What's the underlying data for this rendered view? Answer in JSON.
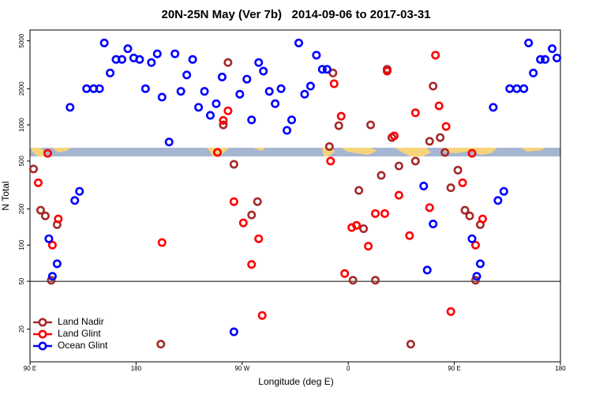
{
  "chart_data": {
    "type": "scatter",
    "title": "20N-25N May (Ver 7b)   2014-09-06 to 2017-03-31",
    "xlabel": "Longitude (deg E)",
    "ylabel": "N Total",
    "xlim": [
      90,
      540
    ],
    "xticks": [
      {
        "value": 90,
        "label": "90 E"
      },
      {
        "value": 180,
        "label": "180"
      },
      {
        "value": 270,
        "label": "90 W"
      },
      {
        "value": 360,
        "label": "0"
      },
      {
        "value": 450,
        "label": "90 E"
      },
      {
        "value": 540,
        "label": "180"
      }
    ],
    "ylim": [
      10.7,
      6150
    ],
    "yscale": "log",
    "yticks": [
      20,
      50,
      100,
      200,
      500,
      1000,
      2000,
      5000
    ],
    "reference_line": 50,
    "legend": "lower left",
    "series": [
      {
        "name": "Land Nadir",
        "color": "#a52a2a",
        "x": [
          93,
          99,
          103,
          113,
          108,
          201,
          254,
          258,
          263,
          278,
          283,
          344,
          347,
          352,
          364,
          369,
          373,
          379,
          383,
          388,
          393,
          397,
          403,
          413,
          417,
          429,
          432,
          438,
          442,
          447,
          453,
          459,
          463,
          468,
          472
        ],
        "values": [
          430,
          195,
          175,
          148,
          51,
          15,
          1000,
          3300,
          470,
          178,
          230,
          660,
          2700,
          985,
          51,
          285,
          137,
          1000,
          51,
          380,
          2900,
          785,
          455,
          15,
          500,
          730,
          2100,
          785,
          590,
          300,
          420,
          195,
          175,
          51,
          148
        ]
      },
      {
        "name": "Land Glint",
        "color": "#ff0000",
        "x": [
          105,
          97,
          109,
          114,
          202,
          249,
          254,
          258,
          263,
          271,
          278,
          284,
          287,
          348,
          345,
          354,
          357,
          363,
          367,
          377,
          383,
          391,
          393,
          399,
          403,
          412,
          417,
          429,
          434,
          437,
          443,
          447,
          457,
          465,
          474,
          468
        ],
        "values": [
          580,
          330,
          100,
          165,
          105,
          590,
          1090,
          1310,
          230,
          153,
          69,
          113,
          26,
          2200,
          500,
          1180,
          58,
          140,
          146,
          98,
          183,
          183,
          2800,
          810,
          260,
          120,
          1260,
          205,
          3800,
          1440,
          970,
          28,
          330,
          580,
          165,
          100
        ]
      },
      {
        "name": "Ocean Glint",
        "color": "#0000ff",
        "x": [
          153,
          158,
          163,
          168,
          173,
          178,
          183,
          188,
          193,
          198,
          202,
          208,
          213,
          218,
          223,
          228,
          233,
          238,
          243,
          248,
          253,
          263,
          268,
          274,
          278,
          284,
          288,
          293,
          298,
          303,
          308,
          312,
          318,
          323,
          328,
          333,
          338,
          342,
          124,
          128,
          132,
          138,
          144,
          149,
          106,
          109,
          113,
          424,
          427,
          432,
          483,
          487,
          492,
          497,
          503,
          509,
          513,
          517,
          523,
          527,
          533,
          537,
          465,
          469,
          472
        ],
        "values": [
          4800,
          2700,
          3500,
          3500,
          4300,
          3600,
          3500,
          2000,
          3300,
          3900,
          1700,
          720,
          3900,
          1900,
          2600,
          3500,
          1400,
          1900,
          1200,
          1500,
          2500,
          19,
          1800,
          2400,
          1100,
          3300,
          2800,
          1900,
          1500,
          2000,
          900,
          1100,
          4800,
          1800,
          2100,
          3800,
          2900,
          2900,
          1400,
          235,
          280,
          2000,
          2000,
          2000,
          113,
          55,
          70,
          310,
          62,
          150,
          1400,
          235,
          280,
          2000,
          2000,
          2000,
          4800,
          2700,
          3500,
          3500,
          4300,
          3600,
          113,
          55,
          70
        ]
      }
    ]
  }
}
